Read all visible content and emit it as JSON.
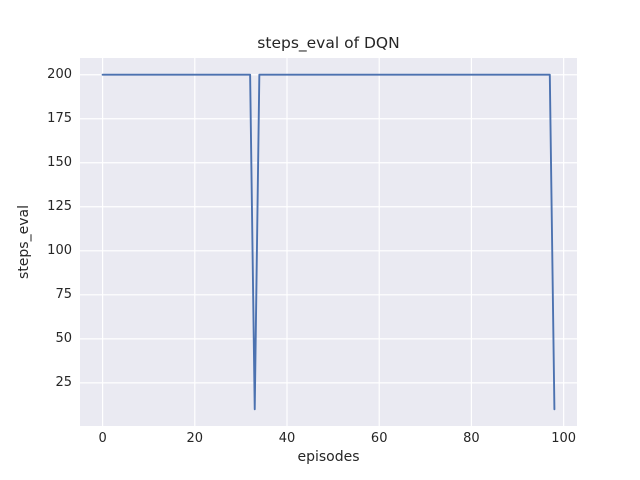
{
  "figure": {
    "title": "steps_eval of DQN",
    "xlabel": "episodes",
    "ylabel": "steps_eval"
  },
  "chart_data": {
    "type": "line",
    "title": "steps_eval of DQN",
    "xlabel": "episodes",
    "ylabel": "steps_eval",
    "series": [
      {
        "name": "steps_eval",
        "x": [
          0,
          1,
          2,
          3,
          4,
          5,
          6,
          7,
          8,
          9,
          10,
          11,
          12,
          13,
          14,
          15,
          16,
          17,
          18,
          19,
          20,
          21,
          22,
          23,
          24,
          25,
          26,
          27,
          28,
          29,
          30,
          31,
          32,
          33,
          34,
          35,
          36,
          37,
          38,
          39,
          40,
          41,
          42,
          43,
          44,
          45,
          46,
          47,
          48,
          49,
          50,
          51,
          52,
          53,
          54,
          55,
          56,
          57,
          58,
          59,
          60,
          61,
          62,
          63,
          64,
          65,
          66,
          67,
          68,
          69,
          70,
          71,
          72,
          73,
          74,
          75,
          76,
          77,
          78,
          79,
          80,
          81,
          82,
          83,
          84,
          85,
          86,
          87,
          88,
          89,
          90,
          91,
          92,
          93,
          94,
          95,
          96,
          97,
          98
        ],
        "values": [
          200,
          200,
          200,
          200,
          200,
          200,
          200,
          200,
          200,
          200,
          200,
          200,
          200,
          200,
          200,
          200,
          200,
          200,
          200,
          200,
          200,
          200,
          200,
          200,
          200,
          200,
          200,
          200,
          200,
          200,
          200,
          200,
          200,
          10,
          200,
          200,
          200,
          200,
          200,
          200,
          200,
          200,
          200,
          200,
          200,
          200,
          200,
          200,
          200,
          200,
          200,
          200,
          200,
          200,
          200,
          200,
          200,
          200,
          200,
          200,
          200,
          200,
          200,
          200,
          200,
          200,
          200,
          200,
          200,
          200,
          200,
          200,
          200,
          200,
          200,
          200,
          200,
          200,
          200,
          200,
          200,
          200,
          200,
          200,
          200,
          200,
          200,
          200,
          200,
          200,
          200,
          200,
          200,
          200,
          200,
          200,
          200,
          200,
          10
        ]
      }
    ],
    "xticks": [
      0,
      20,
      40,
      60,
      80,
      100
    ],
    "yticks": [
      25,
      50,
      75,
      100,
      125,
      150,
      175,
      200
    ],
    "xlim": [
      -4.9,
      102.9
    ],
    "ylim": [
      0.5,
      209.5
    ],
    "grid": true,
    "legend_position": "none",
    "colors": {
      "line": "#4c72b0",
      "plot_background": "#eaeaf2",
      "grid": "#ffffff",
      "text": "#262626",
      "figure_background": "#ffffff"
    }
  }
}
